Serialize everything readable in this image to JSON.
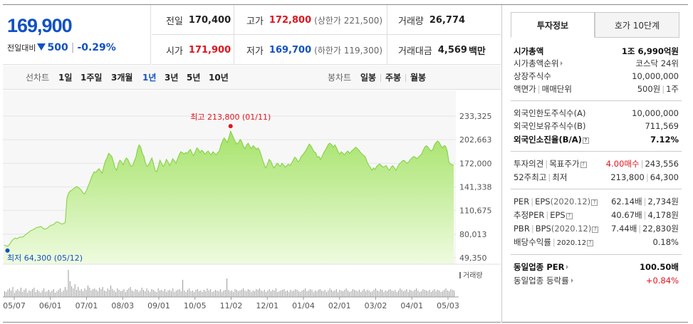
{
  "price": {
    "current": "169,900",
    "change_label": "전일대비",
    "change_value": "500",
    "change_pct": "-0.29%"
  },
  "info": {
    "prev_close_label": "전일",
    "prev_close": "170,400",
    "high_label": "고가",
    "high": "172,800",
    "upper_limit": "(상한가 221,500)",
    "volume_label": "거래량",
    "volume": "26,774",
    "open_label": "시가",
    "open": "171,900",
    "low_label": "저가",
    "low": "169,700",
    "lower_limit": "(하한가 119,300)",
    "amount_label": "거래대금",
    "amount": "4,569",
    "amount_unit": "백만"
  },
  "tabs": {
    "line_label": "선차트",
    "periods": [
      "1일",
      "1주일",
      "3개월",
      "1년",
      "3년",
      "5년",
      "10년"
    ],
    "active_period": "1년",
    "candle_label": "봉차트",
    "candles": [
      "일봉",
      "주봉",
      "월봉"
    ]
  },
  "chart_data": {
    "type": "area",
    "x_ticks": [
      "05/07",
      "06/01",
      "07/01",
      "08/03",
      "09/01",
      "10/05",
      "11/02",
      "12/01",
      "01/04",
      "02/01",
      "03/02",
      "04/01",
      "05/03"
    ],
    "y_ticks": [
      "233,325",
      "202,663",
      "172,000",
      "141,338",
      "110,675",
      "80,013",
      "49,350"
    ],
    "ylim": [
      49350,
      233325
    ],
    "max_label": "최고 213,800 (01/11)",
    "min_label": "최저 64,300 (05/12)",
    "volume_label": "거래량",
    "series": [
      {
        "values": [
          66000,
          65000,
          64300,
          66000,
          69000,
          72000,
          74000,
          75000,
          74000,
          75500,
          76500,
          76000,
          77000,
          79000,
          80500,
          82000,
          84000,
          85000,
          86000,
          87000,
          88500,
          89000,
          89500,
          90000,
          88000,
          86500,
          87000,
          88000,
          90000,
          91500,
          92000,
          93000,
          95000,
          96000,
          95000,
          94000,
          93000,
          94000,
          95000,
          126000,
          133000,
          136000,
          137000,
          139000,
          140000,
          142000,
          141000,
          139000,
          137000,
          134000,
          132000,
          136000,
          141000,
          146000,
          152000,
          157000,
          161000,
          160000,
          163000,
          165000,
          162000,
          159000,
          168000,
          175000,
          179000,
          185000,
          183000,
          181000,
          174000,
          166000,
          163000,
          171000,
          176000,
          174000,
          170000,
          175000,
          179000,
          177000,
          172000,
          168000,
          169000,
          175000,
          180000,
          190000,
          196000,
          193000,
          185000,
          181000,
          172000,
          168000,
          170000,
          175000,
          179000,
          171000,
          163000,
          161000,
          168000,
          176000,
          172000,
          168000,
          171000,
          177000,
          174000,
          169000,
          173000,
          178000,
          175000,
          172000,
          178000,
          183000,
          187000,
          186000,
          184000,
          186000,
          185000,
          188000,
          190000,
          185000,
          182000,
          187000,
          192000,
          190000,
          186000,
          189000,
          187000,
          184000,
          186000,
          188000,
          185000,
          183000,
          187000,
          185000,
          183000,
          186000,
          188000,
          196000,
          201000,
          205000,
          202000,
          199000,
          206000,
          213800,
          209000,
          204000,
          200000,
          197000,
          199000,
          203000,
          200000,
          194000,
          191000,
          196000,
          198000,
          194000,
          191000,
          195000,
          193000,
          190000,
          192000,
          189000,
          183000,
          176000,
          170000,
          166000,
          171000,
          177000,
          175000,
          170000,
          166000,
          169000,
          172000,
          170000,
          168000,
          172000,
          170000,
          167000,
          169000,
          171000,
          169000,
          172000,
          176000,
          180000,
          178000,
          174000,
          176000,
          181000,
          183000,
          186000,
          189000,
          193000,
          197000,
          195000,
          191000,
          187000,
          186000,
          180000,
          181000,
          177000,
          181000,
          186000,
          189000,
          193000,
          197000,
          198000,
          196000,
          193000,
          196000,
          192000,
          187000,
          184000,
          187000,
          185000,
          183000,
          186000,
          188000,
          185000,
          187000,
          189000,
          191000,
          193000,
          191000,
          189000,
          186000,
          184000,
          182000,
          180000,
          174000,
          170000,
          167000,
          163000,
          166000,
          164000,
          168000,
          170000,
          171000,
          169000,
          167000,
          168000,
          169000,
          165000,
          163000,
          167000,
          169000,
          166000,
          163000,
          167000,
          171000,
          173000,
          175000,
          176000,
          174000,
          172000,
          174000,
          177000,
          179000,
          181000,
          180000,
          178000,
          180000,
          182000,
          184000,
          189000,
          193000,
          195000,
          193000,
          190000,
          188000,
          190000,
          196000,
          199000,
          201000,
          199000,
          195000,
          192000,
          195000,
          194000,
          188000,
          174000,
          171000,
          170000,
          169900
        ]
      }
    ],
    "volume": [
      8,
      7,
      10,
      12,
      9,
      14,
      6,
      9,
      11,
      8,
      13,
      7,
      10,
      12,
      6,
      9,
      8,
      11,
      13,
      7,
      10,
      8,
      6,
      9,
      12,
      7,
      8,
      10,
      7,
      9,
      11,
      6,
      8,
      10,
      12,
      7,
      9,
      14,
      10,
      38,
      22,
      15,
      12,
      18,
      10,
      14,
      9,
      11,
      8,
      12,
      10,
      16,
      13,
      9,
      11,
      12,
      10,
      8,
      13,
      11,
      14,
      9,
      8,
      12,
      10,
      16,
      11,
      9,
      7,
      12,
      10,
      8,
      9,
      11,
      7,
      10,
      12,
      14,
      9,
      8,
      11,
      10,
      7,
      9,
      13,
      10,
      8,
      12,
      9,
      7,
      11,
      10,
      8,
      7,
      12,
      9,
      10,
      8,
      11,
      7,
      9,
      10,
      8,
      12,
      7,
      9,
      10,
      11,
      8,
      24,
      9,
      7,
      10,
      12,
      8,
      9,
      7,
      10,
      11,
      8,
      9,
      7,
      10,
      8,
      12,
      9,
      11,
      7,
      8,
      10,
      9,
      8,
      11,
      7,
      9,
      10,
      26,
      10,
      8,
      9,
      7,
      11,
      10,
      8,
      9,
      10,
      12,
      9,
      8,
      11,
      10,
      7,
      9,
      8,
      11,
      10,
      12,
      9,
      8,
      10,
      7,
      9,
      11,
      8,
      10,
      9,
      12,
      7,
      8,
      9,
      10,
      11,
      8,
      9,
      7,
      10,
      8,
      9,
      11,
      10,
      8,
      7,
      9,
      10,
      12,
      8,
      9,
      11,
      10,
      7,
      9,
      8,
      10,
      11,
      9,
      8,
      10,
      7,
      9,
      12,
      10,
      8,
      9,
      11,
      7,
      10,
      9,
      8,
      10,
      12,
      9,
      7,
      8,
      11,
      10,
      9,
      8,
      10,
      7,
      9,
      11,
      8,
      10,
      9,
      7,
      8,
      10,
      12,
      9,
      8,
      11,
      10,
      7,
      9,
      8,
      10,
      11,
      9,
      8,
      10,
      7,
      9,
      12,
      10,
      8,
      9,
      11,
      7,
      10,
      9,
      8,
      10,
      12,
      9,
      7,
      8,
      11,
      10,
      9,
      8,
      10,
      7,
      9,
      11,
      8,
      10,
      9,
      7,
      8,
      10,
      12,
      9,
      8,
      11,
      10,
      9
    ],
    "grid": true
  },
  "right_panel": {
    "tab_active": "투자정보",
    "tab_other": "호가 10단계",
    "market_cap_label": "시가총액",
    "market_cap": "1조 6,990억원",
    "cap_rank_label": "시가총액순위",
    "cap_rank": "코스닥 24위",
    "shares_label": "상장주식수",
    "shares": "10,000,000",
    "face_label": "액면가",
    "unit_label": "매매단위",
    "face": "500원",
    "unit": "1주",
    "foreign_limit_label": "외국인한도주식수(A)",
    "foreign_limit": "10,000,000",
    "foreign_hold_label": "외국인보유주식수(B)",
    "foreign_hold": "711,569",
    "foreign_ratio_label": "외국인소진율(B/A)",
    "foreign_ratio": "7.12%",
    "opinion_label": "투자의견",
    "target_label": "목표주가",
    "opinion": "4.00매수",
    "target": "243,556",
    "w52_hi_label": "52주최고",
    "w52_lo_label": "최저",
    "w52_hi": "213,800",
    "w52_lo": "64,300",
    "per_label": "PER",
    "eps_label": "EPS",
    "eps_year": "(2020.12)",
    "per": "62.14배",
    "eps": "2,734원",
    "fper_label": "추정PER",
    "feps_label": "EPS",
    "fper": "40.67배",
    "feps": "4,178원",
    "pbr_label": "PBR",
    "bps_label": "BPS",
    "bps_year": "(2020.12)",
    "pbr": "7.44배",
    "bps": "22,830원",
    "div_label": "배당수익률",
    "div_year": "2020.12",
    "div": "0.18%",
    "ind_per_label": "동일업종 PER",
    "ind_per": "100.50배",
    "ind_rate_label": "동일업종 등락률",
    "ind_rate": "+0.84%"
  }
}
